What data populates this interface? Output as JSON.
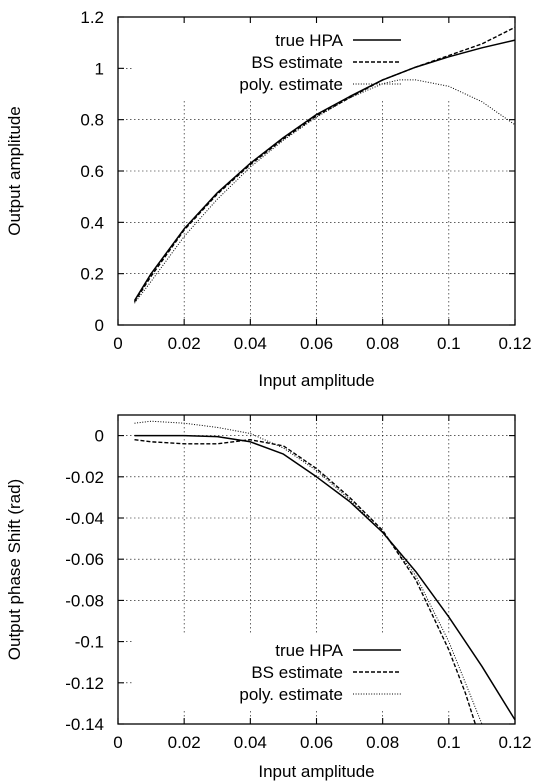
{
  "chart_data": [
    {
      "type": "line",
      "xlabel": "Input amplitude",
      "ylabel": "Output amplitude",
      "xlim": [
        0,
        0.12
      ],
      "ylim": [
        0,
        1.2
      ],
      "xticks": [
        "0",
        "0.02",
        "0.04",
        "0.06",
        "0.08",
        "0.1",
        "0.12"
      ],
      "yticks": [
        "0",
        "0.2",
        "0.4",
        "0.6",
        "0.8",
        "1",
        "1.2"
      ],
      "grid": true,
      "legend_position": "top-right",
      "series": [
        {
          "name": "true HPA",
          "style": "solid",
          "x": [
            0.005,
            0.01,
            0.02,
            0.03,
            0.04,
            0.05,
            0.06,
            0.07,
            0.08,
            0.09,
            0.1,
            0.11,
            0.12
          ],
          "y": [
            0.095,
            0.2,
            0.375,
            0.515,
            0.63,
            0.73,
            0.82,
            0.89,
            0.955,
            1.005,
            1.045,
            1.08,
            1.11
          ]
        },
        {
          "name": "BS estimate",
          "style": "dashed",
          "x": [
            0.005,
            0.01,
            0.02,
            0.03,
            0.04,
            0.05,
            0.06,
            0.07,
            0.08,
            0.09,
            0.1,
            0.11,
            0.12
          ],
          "y": [
            0.09,
            0.19,
            0.37,
            0.51,
            0.625,
            0.725,
            0.815,
            0.885,
            0.955,
            1.005,
            1.05,
            1.095,
            1.16
          ]
        },
        {
          "name": "poly. estimate",
          "style": "dotted",
          "x": [
            0.005,
            0.01,
            0.02,
            0.03,
            0.04,
            0.05,
            0.06,
            0.07,
            0.08,
            0.085,
            0.09,
            0.1,
            0.11,
            0.12
          ],
          "y": [
            0.085,
            0.17,
            0.345,
            0.49,
            0.615,
            0.72,
            0.81,
            0.885,
            0.94,
            0.955,
            0.955,
            0.93,
            0.87,
            0.78
          ]
        }
      ]
    },
    {
      "type": "line",
      "xlabel": "Input amplitude",
      "ylabel": "Output phase Shift (rad)",
      "xlim": [
        0,
        0.12
      ],
      "ylim": [
        -0.14,
        0.01
      ],
      "xticks": [
        "0",
        "0.02",
        "0.04",
        "0.06",
        "0.08",
        "0.1",
        "0.12"
      ],
      "yticks": [
        "0",
        "-0.02",
        "-0.04",
        "-0.06",
        "-0.08",
        "-0.1",
        "-0.12",
        "-0.14"
      ],
      "grid": true,
      "legend_position": "bottom-right",
      "series": [
        {
          "name": "true HPA",
          "style": "solid",
          "x": [
            0.005,
            0.01,
            0.02,
            0.03,
            0.04,
            0.05,
            0.06,
            0.07,
            0.08,
            0.09,
            0.1,
            0.11,
            0.12
          ],
          "y": [
            0.0,
            0.0,
            0.0,
            -0.0005,
            -0.003,
            -0.009,
            -0.02,
            -0.032,
            -0.047,
            -0.066,
            -0.088,
            -0.112,
            -0.138
          ]
        },
        {
          "name": "BS estimate",
          "style": "dashed",
          "x": [
            0.005,
            0.01,
            0.02,
            0.03,
            0.04,
            0.05,
            0.06,
            0.07,
            0.08,
            0.09,
            0.1,
            0.105,
            0.108
          ],
          "y": [
            -0.002,
            -0.003,
            -0.004,
            -0.004,
            -0.002,
            -0.005,
            -0.016,
            -0.03,
            -0.046,
            -0.07,
            -0.104,
            -0.125,
            -0.14
          ]
        },
        {
          "name": "poly. estimate",
          "style": "dotted",
          "x": [
            0.005,
            0.01,
            0.02,
            0.03,
            0.04,
            0.05,
            0.06,
            0.07,
            0.08,
            0.09,
            0.1,
            0.105,
            0.11
          ],
          "y": [
            0.006,
            0.007,
            0.006,
            0.004,
            0.001,
            -0.006,
            -0.017,
            -0.031,
            -0.047,
            -0.068,
            -0.1,
            -0.12,
            -0.14
          ]
        }
      ]
    }
  ]
}
